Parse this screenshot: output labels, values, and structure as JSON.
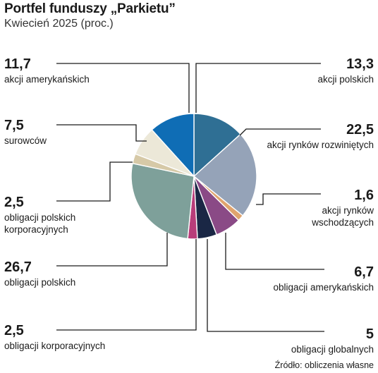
{
  "header": {
    "title": "Portfel funduszy „Parkietu”",
    "subtitle": "Kwiecień 2025 (proc.)"
  },
  "footer": {
    "source": "Źródło: obliczenia własne"
  },
  "chart_data": {
    "type": "pie",
    "title": "Portfel funduszy „Parkietu”",
    "subtitle": "Kwiecień 2025 (proc.)",
    "slices": [
      {
        "value": 13.3,
        "value_label": "13,3",
        "label": [
          "akcji polskich"
        ],
        "color": "#2f6f94"
      },
      {
        "value": 22.5,
        "value_label": "22,5",
        "label": [
          "akcji rynków rozwiniętych"
        ],
        "color": "#95a3b8"
      },
      {
        "value": 1.6,
        "value_label": "1,6",
        "label": [
          "akcji rynków",
          "wschodzących"
        ],
        "color": "#e0a46e"
      },
      {
        "value": 6.7,
        "value_label": "6,7",
        "label": [
          "obligacji amerykańskich"
        ],
        "color": "#8a4a86"
      },
      {
        "value": 5,
        "value_label": "5",
        "label": [
          "obligacji globalnych"
        ],
        "color": "#1a2745"
      },
      {
        "value": 2.5,
        "value_label": "2,5",
        "label": [
          "obligacji korporacyjnych"
        ],
        "color": "#b83d7a"
      },
      {
        "value": 26.7,
        "value_label": "26,7",
        "label": [
          "obligacji polskich"
        ],
        "color": "#7ea09a"
      },
      {
        "value": 2.5,
        "value_label": "2,5",
        "label": [
          "obligacji polskich",
          "korporacyjnych"
        ],
        "color": "#d6c9a7"
      },
      {
        "value": 7.5,
        "value_label": "7,5",
        "label": [
          "surowców"
        ],
        "color": "#ece8d8"
      },
      {
        "value": 11.7,
        "value_label": "11,7",
        "label": [
          "akcji amerykańskich"
        ],
        "color": "#0f6db5"
      }
    ]
  }
}
